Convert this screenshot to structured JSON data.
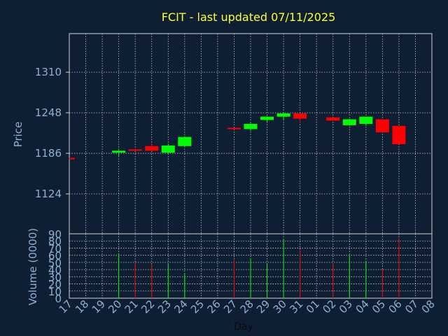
{
  "chart_data": {
    "type": "candlestick",
    "title": "FCIT - last updated 07/11/2025",
    "ylabel_price": "Price",
    "ylabel_volume": "Volume (0000)",
    "xlabel": "Day",
    "price_ticks": [
      1124,
      1186,
      1248,
      1310
    ],
    "price_ylim": [
      1063,
      1369
    ],
    "volume_ticks": [
      0,
      10,
      20,
      30,
      40,
      50,
      60,
      70,
      80,
      90
    ],
    "volume_ylim": [
      0,
      90
    ],
    "x_ticks": [
      "17",
      "18",
      "19",
      "20",
      "21",
      "22",
      "23",
      "24",
      "25",
      "26",
      "27",
      "28",
      "29",
      "30",
      "31",
      "01",
      "02",
      "03",
      "04",
      "05",
      "06",
      "07",
      "08"
    ],
    "up_color": "#00ff00",
    "down_color": "#ff0000",
    "candles": [
      {
        "i": 0,
        "open": 1179,
        "high": 1179,
        "low": 1178,
        "close": 1178,
        "volume": 0
      },
      {
        "i": 3,
        "open": 1187,
        "high": 1191,
        "low": 1181,
        "close": 1190,
        "volume": 62
      },
      {
        "i": 4,
        "open": 1192,
        "high": 1193,
        "low": 1189,
        "close": 1190,
        "volume": 50
      },
      {
        "i": 5,
        "open": 1197,
        "high": 1200,
        "low": 1189,
        "close": 1190,
        "volume": 47
      },
      {
        "i": 6,
        "open": 1187,
        "high": 1199,
        "low": 1186,
        "close": 1198,
        "volume": 48
      },
      {
        "i": 7,
        "open": 1197,
        "high": 1212,
        "low": 1196,
        "close": 1211,
        "volume": 35
      },
      {
        "i": 10,
        "open": 1225,
        "high": 1226,
        "low": 1222,
        "close": 1223,
        "volume": 53
      },
      {
        "i": 11,
        "open": 1223,
        "high": 1233,
        "low": 1220,
        "close": 1231,
        "volume": 56
      },
      {
        "i": 12,
        "open": 1237,
        "high": 1243,
        "low": 1234,
        "close": 1242,
        "volume": 48
      },
      {
        "i": 13,
        "open": 1242,
        "high": 1248,
        "low": 1236,
        "close": 1247,
        "volume": 82
      },
      {
        "i": 14,
        "open": 1247,
        "high": 1247,
        "low": 1233,
        "close": 1239,
        "volume": 67
      },
      {
        "i": 16,
        "open": 1241,
        "high": 1241,
        "low": 1236,
        "close": 1236,
        "volume": 49
      },
      {
        "i": 17,
        "open": 1229,
        "high": 1239,
        "low": 1228,
        "close": 1238,
        "volume": 60
      },
      {
        "i": 18,
        "open": 1231,
        "high": 1242,
        "low": 1228,
        "close": 1242,
        "volume": 52
      },
      {
        "i": 19,
        "open": 1238,
        "high": 1238,
        "low": 1218,
        "close": 1218,
        "volume": 41
      },
      {
        "i": 20,
        "open": 1228,
        "high": 1228,
        "low": 1200,
        "close": 1200,
        "volume": 84
      }
    ]
  }
}
